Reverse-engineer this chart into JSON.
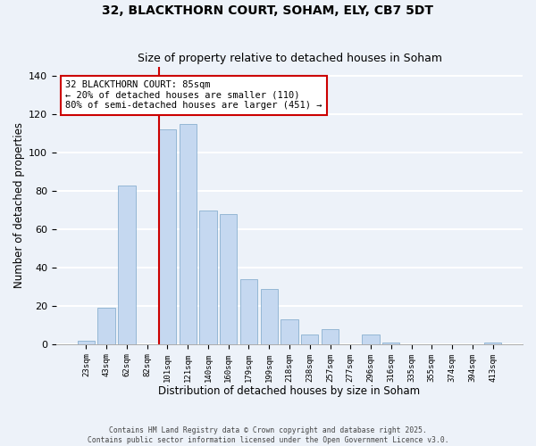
{
  "title": "32, BLACKTHORN COURT, SOHAM, ELY, CB7 5DT",
  "subtitle": "Size of property relative to detached houses in Soham",
  "xlabel": "Distribution of detached houses by size in Soham",
  "ylabel": "Number of detached properties",
  "bar_labels": [
    "23sqm",
    "43sqm",
    "62sqm",
    "82sqm",
    "101sqm",
    "121sqm",
    "140sqm",
    "160sqm",
    "179sqm",
    "199sqm",
    "218sqm",
    "238sqm",
    "257sqm",
    "277sqm",
    "296sqm",
    "316sqm",
    "335sqm",
    "355sqm",
    "374sqm",
    "394sqm",
    "413sqm"
  ],
  "bar_values": [
    2,
    19,
    83,
    0,
    112,
    115,
    70,
    68,
    34,
    29,
    13,
    5,
    8,
    0,
    5,
    1,
    0,
    0,
    0,
    0,
    1
  ],
  "bar_color": "#c5d8f0",
  "bar_edge_color": "#8ab0d0",
  "vline_x": 3.575,
  "vline_color": "#cc0000",
  "annotation_title": "32 BLACKTHORN COURT: 85sqm",
  "annotation_line1": "← 20% of detached houses are smaller (110)",
  "annotation_line2": "80% of semi-detached houses are larger (451) →",
  "annotation_box_color": "#ffffff",
  "annotation_box_edge": "#cc0000",
  "ylim": [
    0,
    145
  ],
  "yticks": [
    0,
    20,
    40,
    60,
    80,
    100,
    120,
    140
  ],
  "footer_line1": "Contains HM Land Registry data © Crown copyright and database right 2025.",
  "footer_line2": "Contains public sector information licensed under the Open Government Licence v3.0.",
  "bg_color": "#edf2f9",
  "grid_color": "#ffffff",
  "title_fontsize": 10,
  "subtitle_fontsize": 9,
  "figwidth": 6.0,
  "figheight": 5.0,
  "dpi": 100
}
